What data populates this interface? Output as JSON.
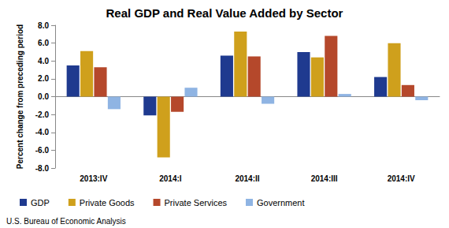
{
  "chart_data": {
    "type": "bar",
    "title": "Real GDP and Real Value Added by Sector",
    "ylabel": "Percent change from preceding period",
    "annotation": "U.S. Bureau of Economic Analysis",
    "categories": [
      "2013:IV",
      "2014:I",
      "2014:II",
      "2014:III",
      "2014:IV"
    ],
    "series": [
      {
        "name": "GDP",
        "color": "#1f3a8f",
        "values": [
          3.5,
          -2.1,
          4.6,
          5.0,
          2.2
        ]
      },
      {
        "name": "Private Goods",
        "color": "#cfa01c",
        "values": [
          5.1,
          -6.8,
          7.3,
          4.4,
          6.0
        ]
      },
      {
        "name": "Private Services",
        "color": "#b5482b",
        "values": [
          3.3,
          -1.7,
          4.5,
          6.8,
          1.3
        ]
      },
      {
        "name": "Government",
        "color": "#8fb4e3",
        "values": [
          -1.4,
          1.0,
          -0.8,
          0.3,
          -0.4
        ]
      }
    ],
    "ylim": [
      -8,
      8
    ],
    "yticks": [
      {
        "value": -8,
        "label": "-8.0"
      },
      {
        "value": -6,
        "label": "-6.0"
      },
      {
        "value": -4,
        "label": "-4.0"
      },
      {
        "value": -2,
        "label": "-2.0"
      },
      {
        "value": 0,
        "label": "0.0"
      },
      {
        "value": 2,
        "label": "2.0"
      },
      {
        "value": 4,
        "label": "4.0"
      },
      {
        "value": 6,
        "label": "6.0"
      },
      {
        "value": 8,
        "label": "8.0"
      }
    ],
    "grid": false,
    "legend": "bottom"
  }
}
